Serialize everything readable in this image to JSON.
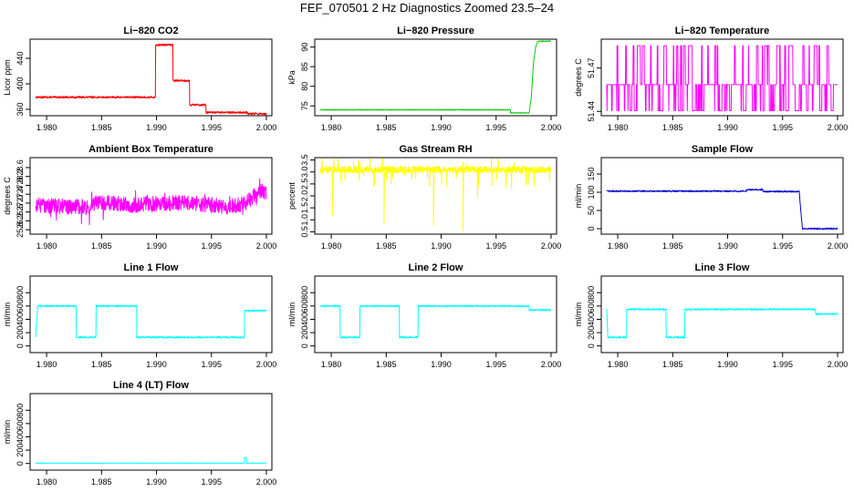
{
  "figure_title": "FEF_070501  2 Hz Diagnostics Zoomed 23.5–24",
  "chart_data": [
    {
      "id": "co2",
      "type": "line",
      "title": "Li−820 CO2",
      "xlabel": "",
      "ylabel": "Licor ppm",
      "xlim": [
        1.9785,
        2.0005
      ],
      "ylim": [
        350,
        470
      ],
      "xticks": [
        1.98,
        1.985,
        1.99,
        1.995,
        2.0
      ],
      "xtick_labels": [
        "1.980",
        "1.985",
        "1.990",
        "1.995",
        "2.000"
      ],
      "yticks": [
        360,
        400,
        440
      ],
      "ytick_labels": [
        "360",
        "400",
        "440"
      ],
      "color": "#ff0000",
      "noise": 1.5,
      "series": [
        {
          "x": [
            1.979,
            1.9899,
            1.9899,
            1.9915,
            1.9915,
            1.993,
            1.993,
            1.9945,
            1.9945,
            1.9983,
            1.9983,
            2.0
          ],
          "values": [
            379,
            379,
            461,
            461,
            405,
            405,
            367,
            367,
            355,
            355,
            353,
            353
          ]
        }
      ]
    },
    {
      "id": "pressure",
      "type": "line",
      "title": "Li−820 Pressure",
      "xlabel": "",
      "ylabel": "kPa",
      "xlim": [
        1.9785,
        2.0005
      ],
      "ylim": [
        72.5,
        92
      ],
      "xticks": [
        1.98,
        1.985,
        1.99,
        1.995,
        2.0
      ],
      "xtick_labels": [
        "1.980",
        "1.985",
        "1.990",
        "1.995",
        "2.000"
      ],
      "yticks": [
        75,
        80,
        85,
        90
      ],
      "ytick_labels": [
        "75",
        "80",
        "85",
        "90"
      ],
      "color": "#00cc00",
      "noise": 0.1,
      "series": [
        {
          "x": [
            1.979,
            1.9963,
            1.9963,
            1.998,
            1.9982,
            1.9984,
            1.9986,
            1.9988,
            2.0
          ],
          "values": [
            74,
            74,
            73.2,
            73.2,
            77,
            86,
            90,
            91.5,
            91.5
          ]
        }
      ]
    },
    {
      "id": "temperature",
      "type": "line",
      "title": "Li−820 Temperature",
      "xlabel": "",
      "ylabel": "degrees C",
      "xlim": [
        1.9785,
        2.0005
      ],
      "ylim": [
        51.437,
        51.49
      ],
      "xticks": [
        1.98,
        1.985,
        1.99,
        1.995,
        2.0
      ],
      "xtick_labels": [
        "1.980",
        "1.985",
        "1.990",
        "1.995",
        "2.000"
      ],
      "yticks": [
        51.44,
        51.47
      ],
      "ytick_labels": [
        "51.44",
        "51.47"
      ],
      "color": "#ff00ff",
      "noise": 0,
      "pattern": "digital",
      "levels": [
        51.4405,
        51.4585,
        51.4855
      ],
      "series": [
        {
          "x": [
            1.979,
            2.0
          ],
          "values": [
            51.4585,
            51.4585
          ]
        }
      ]
    },
    {
      "id": "ambient-temp",
      "type": "line",
      "title": "Ambient Box Temperature",
      "xlabel": "",
      "ylabel": "degrees C",
      "xlim": [
        1.9785,
        2.0005
      ],
      "ylim": [
        25.6,
        29.05
      ],
      "xticks": [
        1.98,
        1.985,
        1.99,
        1.995,
        2.0
      ],
      "xtick_labels": [
        "1.980",
        "1.985",
        "1.990",
        "1.995",
        "2.000"
      ],
      "yticks": [
        25.8,
        26.2,
        26.6,
        27.0,
        27.4,
        27.8,
        28.2,
        28.6
      ],
      "ytick_labels": [
        "25.8",
        "26.2",
        "26.6",
        "27.0",
        "27.4",
        "27.8",
        "28.2",
        "28.6"
      ],
      "color": "#ff00ff",
      "noise": 0.35,
      "spikes": 0.5,
      "series": [
        {
          "x": [
            1.979,
            1.9825,
            1.984,
            1.9845,
            1.986,
            1.988,
            1.9905,
            1.993,
            1.9965,
            1.998,
            1.9995,
            2.0
          ],
          "values": [
            26.9,
            26.85,
            26.8,
            27.05,
            27.0,
            26.9,
            27.0,
            27.0,
            26.85,
            26.95,
            27.55,
            27.4
          ]
        }
      ]
    },
    {
      "id": "gas-rh",
      "type": "line",
      "title": "Gas Stream RH",
      "xlabel": "",
      "ylabel": "percent",
      "xlim": [
        1.9785,
        2.0005
      ],
      "ylim": [
        0.4,
        3.6
      ],
      "xticks": [
        1.98,
        1.985,
        1.99,
        1.995,
        2.0
      ],
      "xtick_labels": [
        "1.980",
        "1.985",
        "1.990",
        "1.995",
        "2.000"
      ],
      "yticks": [
        0.5,
        1.0,
        1.5,
        2.0,
        2.5,
        3.0,
        3.5
      ],
      "ytick_labels": [
        "0.5",
        "1.0",
        "1.5",
        "2.0",
        "2.5",
        "3.0",
        "3.5"
      ],
      "color": "#ffff00",
      "noise": 0.14,
      "spikes": 0.8,
      "dips": [
        [
          1.9801,
          1.2
        ],
        [
          1.9848,
          0.85
        ],
        [
          1.9893,
          0.8
        ],
        [
          1.992,
          0.55
        ],
        [
          1.9933,
          1.9
        ]
      ],
      "series": [
        {
          "x": [
            1.979,
            2.0
          ],
          "values": [
            3.1,
            3.1
          ]
        }
      ]
    },
    {
      "id": "sample-flow",
      "type": "line",
      "title": "Sample Flow",
      "xlabel": "",
      "ylabel": "ml/min",
      "xlim": [
        1.9785,
        2.0005
      ],
      "ylim": [
        -15,
        195
      ],
      "xticks": [
        1.98,
        1.985,
        1.99,
        1.995,
        2.0
      ],
      "xtick_labels": [
        "1.980",
        "1.985",
        "1.990",
        "1.995",
        "2.000"
      ],
      "yticks": [
        0,
        50,
        100,
        150
      ],
      "ytick_labels": [
        "0",
        "50",
        "100",
        "150"
      ],
      "color": "#0000cc",
      "noise": 2,
      "series": [
        {
          "x": [
            1.979,
            1.9917,
            1.9917,
            1.9932,
            1.9932,
            1.9965,
            1.9965,
            1.9968,
            2.0
          ],
          "values": [
            103,
            103,
            107,
            107,
            102,
            102,
            105,
            0,
            0
          ]
        }
      ]
    },
    {
      "id": "line1-flow",
      "type": "line",
      "title": "Line 1 Flow",
      "xlabel": "",
      "ylabel": "ml/min",
      "xlim": [
        1.9785,
        2.0005
      ],
      "ylim": [
        -100,
        1050
      ],
      "xticks": [
        1.98,
        1.985,
        1.99,
        1.995,
        2.0
      ],
      "xtick_labels": [
        "1.980",
        "1.985",
        "1.990",
        "1.995",
        "2.000"
      ],
      "yticks": [
        0,
        200,
        400,
        600,
        800
      ],
      "ytick_labels": [
        "0",
        "200",
        "400",
        "600",
        "800"
      ],
      "color": "#00ffff",
      "noise": 12,
      "series": [
        {
          "x": [
            1.979,
            1.9792,
            1.9827,
            1.9827,
            1.9845,
            1.9845,
            1.9882,
            1.9882,
            1.998,
            1.998,
            2.0
          ],
          "values": [
            130,
            600,
            600,
            130,
            130,
            600,
            600,
            130,
            130,
            530,
            530
          ]
        }
      ]
    },
    {
      "id": "line2-flow",
      "type": "line",
      "title": "Line 2 Flow",
      "xlabel": "",
      "ylabel": "ml/min",
      "xlim": [
        1.9785,
        2.0005
      ],
      "ylim": [
        -100,
        1050
      ],
      "xticks": [
        1.98,
        1.985,
        1.99,
        1.995,
        2.0
      ],
      "xtick_labels": [
        "1.980",
        "1.985",
        "1.990",
        "1.995",
        "2.000"
      ],
      "yticks": [
        0,
        200,
        400,
        600,
        800
      ],
      "ytick_labels": [
        "0",
        "200",
        "400",
        "600",
        "800"
      ],
      "color": "#00ffff",
      "noise": 12,
      "series": [
        {
          "x": [
            1.979,
            1.9808,
            1.9808,
            1.9826,
            1.9826,
            1.9862,
            1.9862,
            1.9879,
            1.9879,
            1.998,
            1.998,
            2.0
          ],
          "values": [
            600,
            600,
            130,
            130,
            600,
            600,
            130,
            130,
            600,
            600,
            540,
            540
          ]
        }
      ]
    },
    {
      "id": "line3-flow",
      "type": "line",
      "title": "Line 3 Flow",
      "xlabel": "",
      "ylabel": "ml/min",
      "xlim": [
        1.9785,
        2.0005
      ],
      "ylim": [
        -100,
        1050
      ],
      "xticks": [
        1.98,
        1.985,
        1.99,
        1.995,
        2.0
      ],
      "xtick_labels": [
        "1.980",
        "1.985",
        "1.990",
        "1.995",
        "2.000"
      ],
      "yticks": [
        0,
        200,
        400,
        600,
        800
      ],
      "ytick_labels": [
        "0",
        "200",
        "400",
        "600",
        "800"
      ],
      "color": "#00ffff",
      "noise": 12,
      "series": [
        {
          "x": [
            1.979,
            1.9791,
            1.9808,
            1.9808,
            1.9844,
            1.9844,
            1.9861,
            1.9861,
            1.998,
            1.998,
            2.0
          ],
          "values": [
            550,
            130,
            130,
            550,
            550,
            130,
            130,
            550,
            550,
            480,
            480
          ]
        }
      ]
    },
    {
      "id": "line4-flow",
      "type": "line",
      "title": "Line 4 (LT) Flow",
      "xlabel": "",
      "ylabel": "ml/min",
      "xlim": [
        1.9785,
        2.0005
      ],
      "ylim": [
        -100,
        1050
      ],
      "xticks": [
        1.98,
        1.985,
        1.99,
        1.995,
        2.0
      ],
      "xtick_labels": [
        "1.980",
        "1.985",
        "1.990",
        "1.995",
        "2.000"
      ],
      "yticks": [
        0,
        200,
        400,
        600,
        800
      ],
      "ytick_labels": [
        "0",
        "200",
        "400",
        "600",
        "800"
      ],
      "color": "#00ffff",
      "noise": 2,
      "series": [
        {
          "x": [
            1.979,
            1.998,
            1.998,
            1.9982,
            1.9982,
            2.0
          ],
          "values": [
            5,
            5,
            90,
            90,
            5,
            5
          ]
        }
      ]
    }
  ]
}
